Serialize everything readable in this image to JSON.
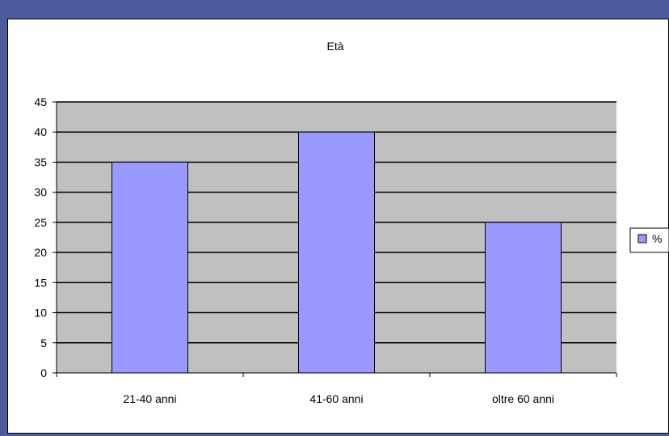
{
  "chart_data": {
    "type": "bar",
    "title": "Età",
    "categories": [
      "21-40 anni",
      "41-60 anni",
      "oltre 60 anni"
    ],
    "series": [
      {
        "name": "%",
        "values": [
          35,
          40,
          25
        ]
      }
    ],
    "ylim": [
      0,
      45
    ],
    "yticks": [
      0,
      5,
      10,
      15,
      20,
      25,
      30,
      35,
      40,
      45
    ],
    "grid": true,
    "legend": "right",
    "colors": {
      "bar": "#9999ff",
      "plot_bg": "#c0c0c0",
      "frame": "#4d5a9c"
    }
  }
}
